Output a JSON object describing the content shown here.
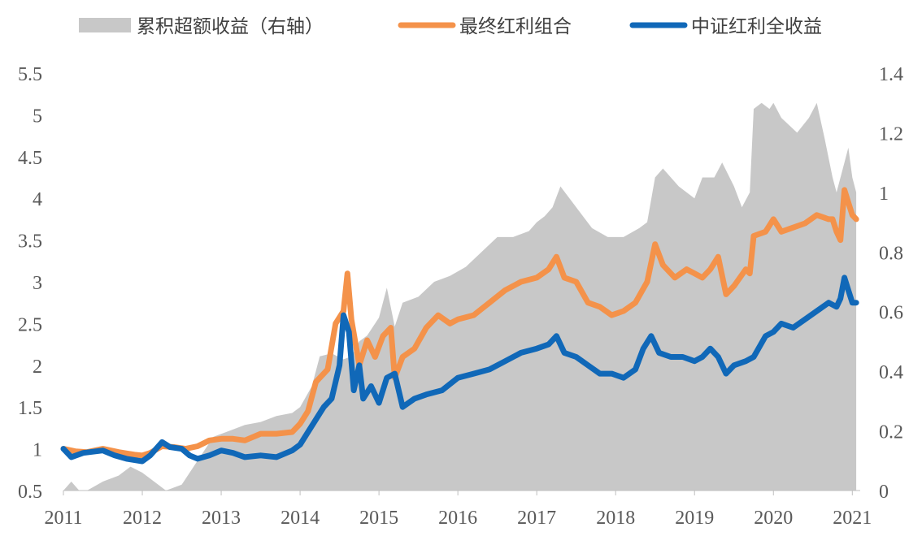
{
  "chart_data": {
    "type": "line",
    "legend_position": "top",
    "grid": false,
    "colors": {
      "excess": "#c8c8c8",
      "portfolio": "#f4924a",
      "index": "#1068b8"
    },
    "legend": [
      {
        "key": "excess",
        "label": "累积超额收益（右轴）",
        "style": "area"
      },
      {
        "key": "portfolio",
        "label": "最终红利组合",
        "style": "line"
      },
      {
        "key": "index",
        "label": "中证红利全收益",
        "style": "line"
      }
    ],
    "x_ticks": [
      "2011",
      "2012",
      "2013",
      "2014",
      "2015",
      "2016",
      "2017",
      "2018",
      "2019",
      "2020",
      "2021"
    ],
    "y_left_ticks": [
      "0.5",
      "1",
      "1.5",
      "2",
      "2.5",
      "3",
      "3.5",
      "4",
      "4.5",
      "5",
      "5.5"
    ],
    "y_right_ticks": [
      "0",
      "0.2",
      "0.4",
      "0.6",
      "0.8",
      "1",
      "1.2",
      "1.4"
    ],
    "xlim": [
      2011.0,
      2021.1
    ],
    "ylim_left": [
      0.5,
      5.5
    ],
    "ylim_right": [
      0,
      1.4
    ],
    "series": [
      {
        "key": "portfolio",
        "name": "最终红利组合",
        "axis": "left",
        "x": [
          2011.0,
          2011.15,
          2011.3,
          2011.5,
          2011.7,
          2011.9,
          2012.0,
          2012.1,
          2012.25,
          2012.4,
          2012.55,
          2012.7,
          2012.85,
          2013.0,
          2013.15,
          2013.3,
          2013.5,
          2013.7,
          2013.9,
          2014.0,
          2014.1,
          2014.2,
          2014.35,
          2014.45,
          2014.55,
          2014.6,
          2014.65,
          2014.75,
          2014.85,
          2014.95,
          2015.05,
          2015.15,
          2015.2,
          2015.3,
          2015.45,
          2015.6,
          2015.75,
          2015.9,
          2016.0,
          2016.2,
          2016.4,
          2016.6,
          2016.8,
          2017.0,
          2017.15,
          2017.25,
          2017.35,
          2017.5,
          2017.65,
          2017.8,
          2017.95,
          2018.1,
          2018.25,
          2018.4,
          2018.5,
          2018.6,
          2018.75,
          2018.9,
          2019.0,
          2019.1,
          2019.2,
          2019.3,
          2019.4,
          2019.5,
          2019.65,
          2019.7,
          2019.75,
          2019.9,
          2020.0,
          2020.1,
          2020.25,
          2020.4,
          2020.55,
          2020.7,
          2020.75,
          2020.8,
          2020.85,
          2020.9,
          2020.95,
          2021.0,
          2021.05
        ],
        "values": [
          1.0,
          0.97,
          0.96,
          1.0,
          0.96,
          0.93,
          0.92,
          0.95,
          1.03,
          1.02,
          1.0,
          1.03,
          1.1,
          1.12,
          1.12,
          1.1,
          1.18,
          1.18,
          1.2,
          1.3,
          1.45,
          1.8,
          1.95,
          2.5,
          2.65,
          3.1,
          2.55,
          2.0,
          2.3,
          2.1,
          2.35,
          2.45,
          1.85,
          2.1,
          2.2,
          2.45,
          2.6,
          2.5,
          2.55,
          2.6,
          2.75,
          2.9,
          3.0,
          3.05,
          3.15,
          3.3,
          3.05,
          3.0,
          2.75,
          2.7,
          2.6,
          2.65,
          2.75,
          3.0,
          3.45,
          3.2,
          3.05,
          3.15,
          3.1,
          3.05,
          3.15,
          3.3,
          2.85,
          2.95,
          3.15,
          3.1,
          3.55,
          3.6,
          3.75,
          3.6,
          3.65,
          3.7,
          3.8,
          3.75,
          3.75,
          3.6,
          3.5,
          4.1,
          3.95,
          3.8,
          3.75
        ]
      },
      {
        "key": "index",
        "name": "中证红利全收益",
        "axis": "left",
        "x": [
          2011.0,
          2011.1,
          2011.25,
          2011.5,
          2011.65,
          2011.8,
          2012.0,
          2012.1,
          2012.25,
          2012.35,
          2012.5,
          2012.6,
          2012.7,
          2012.85,
          2013.0,
          2013.15,
          2013.3,
          2013.5,
          2013.7,
          2013.9,
          2014.0,
          2014.1,
          2014.2,
          2014.3,
          2014.4,
          2014.5,
          2014.55,
          2014.62,
          2014.68,
          2014.75,
          2014.8,
          2014.9,
          2015.0,
          2015.1,
          2015.2,
          2015.3,
          2015.45,
          2015.6,
          2015.8,
          2016.0,
          2016.2,
          2016.4,
          2016.6,
          2016.8,
          2017.0,
          2017.15,
          2017.25,
          2017.35,
          2017.5,
          2017.65,
          2017.8,
          2017.95,
          2018.1,
          2018.25,
          2018.35,
          2018.45,
          2018.55,
          2018.7,
          2018.85,
          2019.0,
          2019.1,
          2019.2,
          2019.3,
          2019.4,
          2019.5,
          2019.65,
          2019.75,
          2019.9,
          2020.0,
          2020.1,
          2020.25,
          2020.4,
          2020.55,
          2020.7,
          2020.8,
          2020.85,
          2020.9,
          2020.95,
          2021.0,
          2021.05
        ],
        "values": [
          1.0,
          0.9,
          0.95,
          0.98,
          0.92,
          0.88,
          0.85,
          0.92,
          1.08,
          1.02,
          1.0,
          0.92,
          0.88,
          0.92,
          0.98,
          0.95,
          0.9,
          0.92,
          0.9,
          0.98,
          1.05,
          1.2,
          1.35,
          1.5,
          1.6,
          2.0,
          2.6,
          2.4,
          1.7,
          2.0,
          1.6,
          1.75,
          1.55,
          1.85,
          1.9,
          1.5,
          1.6,
          1.65,
          1.7,
          1.85,
          1.9,
          1.95,
          2.05,
          2.15,
          2.2,
          2.25,
          2.35,
          2.15,
          2.1,
          2.0,
          1.9,
          1.9,
          1.85,
          1.95,
          2.2,
          2.35,
          2.15,
          2.1,
          2.1,
          2.05,
          2.1,
          2.2,
          2.1,
          1.9,
          2.0,
          2.05,
          2.1,
          2.35,
          2.4,
          2.5,
          2.45,
          2.55,
          2.65,
          2.75,
          2.7,
          2.8,
          3.05,
          2.9,
          2.75,
          2.75
        ]
      },
      {
        "key": "excess",
        "name": "累积超额收益（右轴）",
        "axis": "right",
        "x": [
          2011.0,
          2011.1,
          2011.2,
          2011.3,
          2011.5,
          2011.7,
          2011.85,
          2012.0,
          2012.15,
          2012.3,
          2012.5,
          2012.7,
          2012.9,
          2013.1,
          2013.3,
          2013.5,
          2013.7,
          2013.9,
          2014.0,
          2014.15,
          2014.25,
          2014.4,
          2014.55,
          2014.65,
          2014.75,
          2014.85,
          2015.0,
          2015.1,
          2015.2,
          2015.3,
          2015.5,
          2015.7,
          2015.9,
          2016.1,
          2016.3,
          2016.5,
          2016.7,
          2016.9,
          2017.0,
          2017.1,
          2017.2,
          2017.3,
          2017.5,
          2017.7,
          2017.9,
          2018.1,
          2018.3,
          2018.4,
          2018.5,
          2018.6,
          2018.8,
          2019.0,
          2019.1,
          2019.25,
          2019.35,
          2019.5,
          2019.6,
          2019.7,
          2019.75,
          2019.85,
          2019.95,
          2020.0,
          2020.1,
          2020.3,
          2020.45,
          2020.55,
          2020.65,
          2020.75,
          2020.8,
          2020.9,
          2020.95,
          2021.0,
          2021.05
        ],
        "values": [
          0.0,
          0.03,
          0.0,
          0.0,
          0.03,
          0.05,
          0.08,
          0.06,
          0.03,
          0.0,
          0.02,
          0.1,
          0.18,
          0.2,
          0.22,
          0.23,
          0.25,
          0.26,
          0.28,
          0.35,
          0.45,
          0.46,
          0.44,
          0.45,
          0.5,
          0.52,
          0.58,
          0.68,
          0.55,
          0.63,
          0.65,
          0.7,
          0.72,
          0.75,
          0.8,
          0.85,
          0.85,
          0.87,
          0.9,
          0.92,
          0.95,
          1.02,
          0.95,
          0.88,
          0.85,
          0.85,
          0.88,
          0.9,
          1.05,
          1.08,
          1.02,
          0.98,
          1.05,
          1.05,
          1.1,
          1.02,
          0.95,
          1.0,
          1.28,
          1.3,
          1.28,
          1.3,
          1.25,
          1.2,
          1.25,
          1.3,
          1.18,
          1.05,
          1.0,
          1.1,
          1.15,
          1.05,
          1.0
        ]
      }
    ]
  }
}
